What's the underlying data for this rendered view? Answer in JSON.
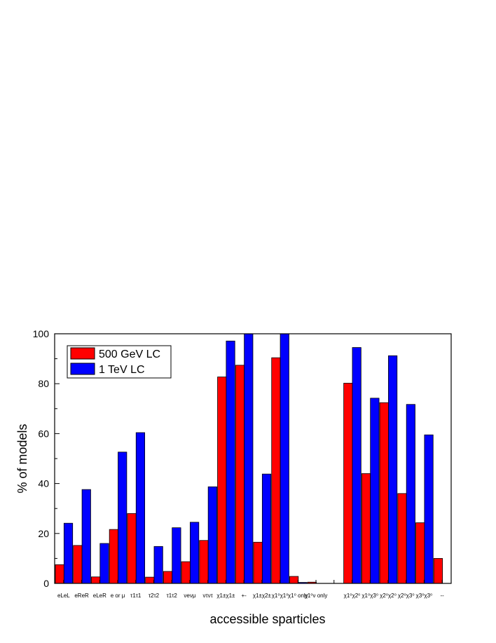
{
  "chart_data": {
    "type": "bar",
    "xlabel": "accessible sparticles",
    "ylabel": "% of models",
    "ylim": [
      0,
      100
    ],
    "yticks": [
      0,
      20,
      40,
      60,
      80,
      100
    ],
    "legend_placement": "top-left",
    "grid": false,
    "categories": [
      "eLeL",
      "eReR",
      "eLeR",
      "e or μ",
      "τ1τ1",
      "τ2τ2",
      "τ1τ2",
      "νeνμ",
      "ντντ",
      "χ1±χ1±",
      "+-",
      "χ1±χ2±",
      "χ1⁰χ1⁰",
      "χ1⁰ only",
      "χ1⁰ν only",
      "",
      "χ1⁰χ2⁰",
      "χ1⁰χ3⁰",
      "χ2⁰χ2⁰",
      "χ2⁰χ3⁰",
      "χ3⁰χ3⁰",
      "--"
    ],
    "series": [
      {
        "name": "500 GeV LC",
        "color": "#ff0000",
        "values": [
          7.5,
          15.2,
          2.6,
          21.6,
          28.0,
          2.5,
          4.8,
          8.7,
          17.2,
          82.7,
          87.4,
          16.5,
          90.4,
          2.8,
          0.5,
          0,
          80.2,
          44.0,
          72.4,
          36.0,
          24.3,
          10.0
        ]
      },
      {
        "name": "1 TeV LC",
        "color": "#0000ff",
        "values": [
          24.1,
          37.6,
          16.0,
          52.6,
          60.4,
          14.8,
          22.3,
          24.5,
          38.7,
          97.1,
          100,
          43.8,
          100,
          0.4,
          0,
          0,
          94.5,
          74.2,
          91.2,
          71.7,
          59.5,
          0
        ]
      }
    ]
  }
}
